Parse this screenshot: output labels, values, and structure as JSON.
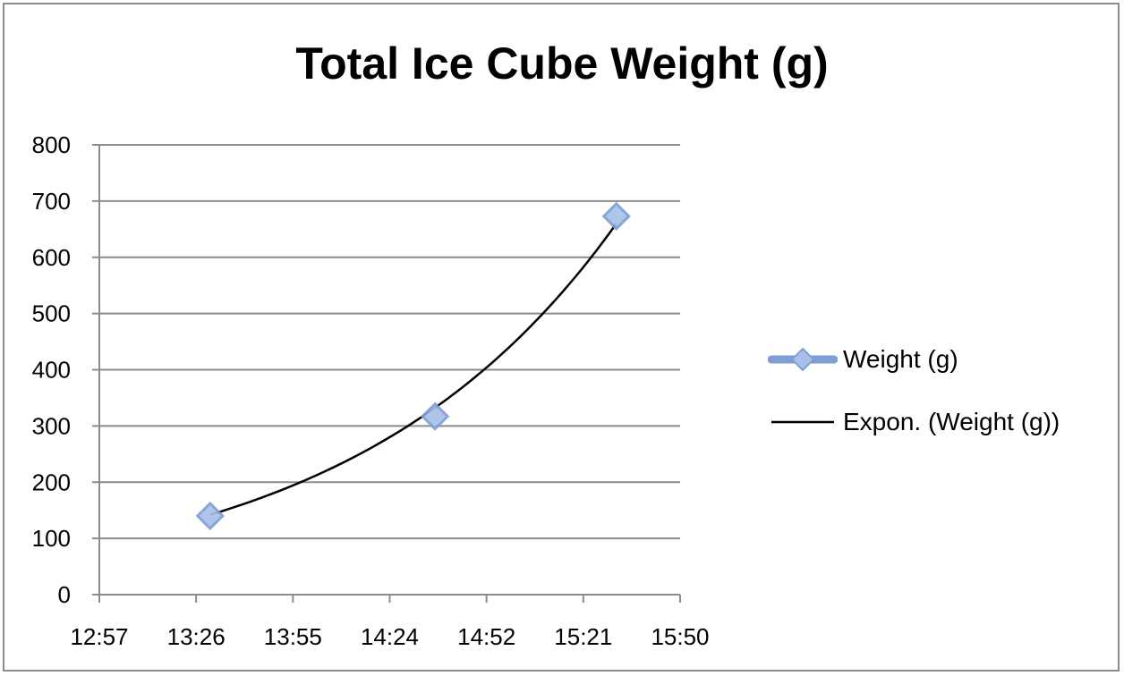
{
  "chart_data": {
    "type": "scatter",
    "title": "Total Ice Cube Weight (g)",
    "xlabel": "",
    "ylabel": "",
    "x_axis": {
      "kind": "time",
      "min": "12:57",
      "max": "15:50",
      "tick_labels": [
        "12:57",
        "13:26",
        "13:55",
        "14:24",
        "14:52",
        "15:21",
        "15:50"
      ]
    },
    "y_axis": {
      "min": 0,
      "max": 800,
      "tick_labels": [
        "0",
        "100",
        "200",
        "300",
        "400",
        "500",
        "600",
        "700",
        "800"
      ]
    },
    "grid": "horizontal",
    "legend_position": "right",
    "series": [
      {
        "name": "Weight (g)",
        "kind": "markers",
        "marker": "diamond",
        "color": "#7f9fd4",
        "points": [
          {
            "x": "13:30",
            "y": 140
          },
          {
            "x": "14:37",
            "y": 317
          },
          {
            "x": "15:31",
            "y": 673
          }
        ]
      },
      {
        "name": "Expon. (Weight (g))",
        "kind": "trendline",
        "fit": "exponential",
        "color": "#000000",
        "x_range": [
          "13:30",
          "15:31"
        ],
        "y_at_start": 142,
        "y_at_end": 660
      }
    ]
  }
}
